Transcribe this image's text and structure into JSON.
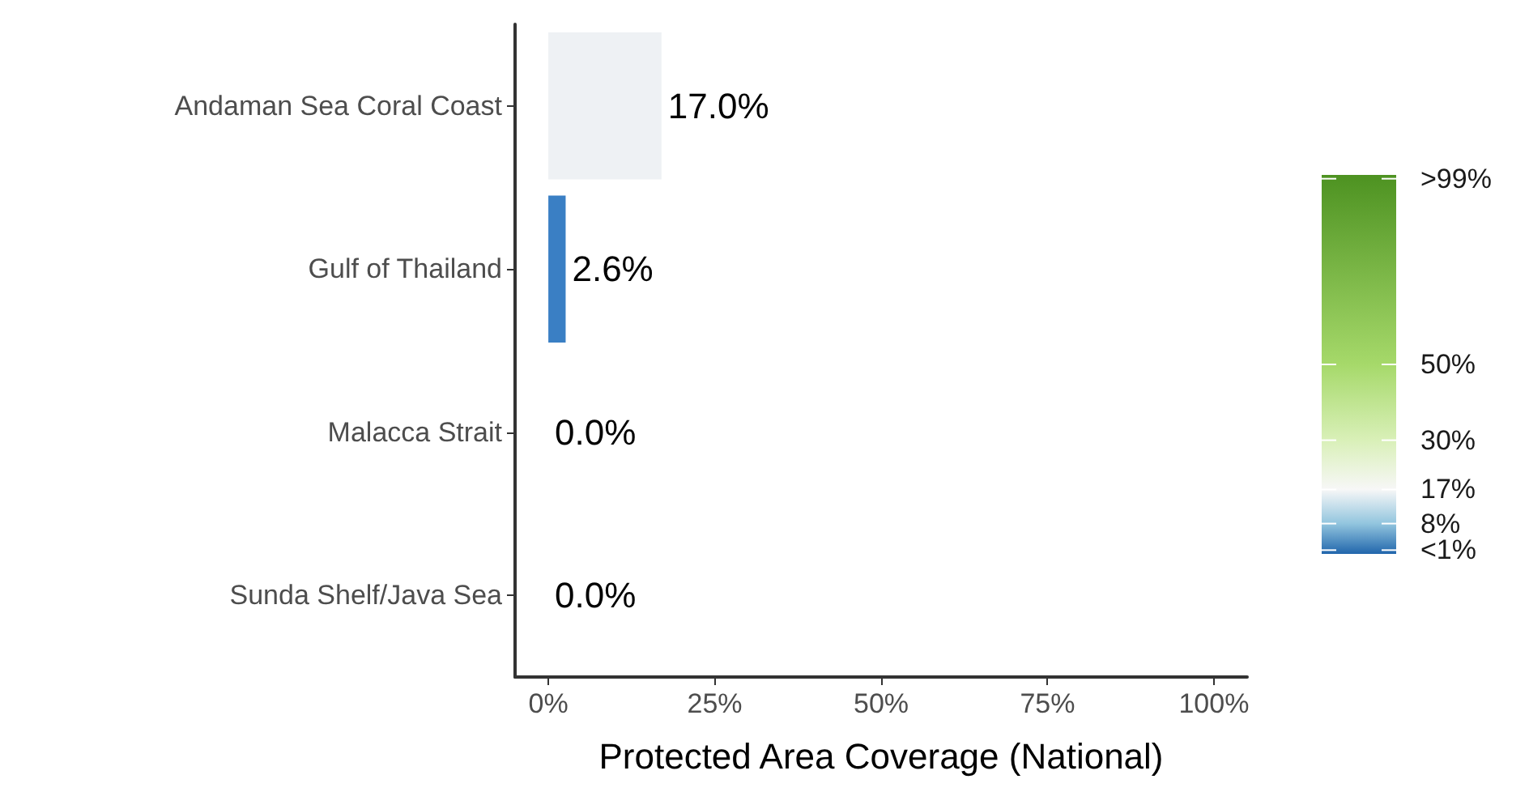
{
  "chart_data": {
    "type": "bar",
    "orientation": "horizontal",
    "xlabel": "Protected Area Coverage (National)",
    "categories": [
      "Andaman Sea Coral Coast",
      "Gulf of Thailand",
      "Malacca Strait",
      "Sunda Shelf/Java Sea"
    ],
    "values": [
      17.0,
      2.6,
      0.0,
      0.0
    ],
    "colors": [
      "#eef1f4",
      "#3a7fc4",
      "#2166ac",
      "#2166ac"
    ],
    "value_labels": [
      "17.0%",
      "2.6%",
      "0.0%",
      "0.0%"
    ],
    "xlim": [
      -5,
      105
    ],
    "xticks": [
      {
        "value": 0,
        "label": "0%"
      },
      {
        "value": 25,
        "label": "25%"
      },
      {
        "value": 50,
        "label": "50%"
      },
      {
        "value": 75,
        "label": "75%"
      },
      {
        "value": 100,
        "label": "100%"
      }
    ],
    "clim": [
      0,
      100
    ],
    "cticks": [
      {
        "value": 1,
        "label": "<1%"
      },
      {
        "value": 8,
        "label": "8%"
      },
      {
        "value": 17,
        "label": "17%"
      },
      {
        "value": 30,
        "label": "30%"
      },
      {
        "value": 50,
        "label": "50%"
      },
      {
        "value": 99,
        "label": ">99%"
      }
    ],
    "grid": false
  }
}
